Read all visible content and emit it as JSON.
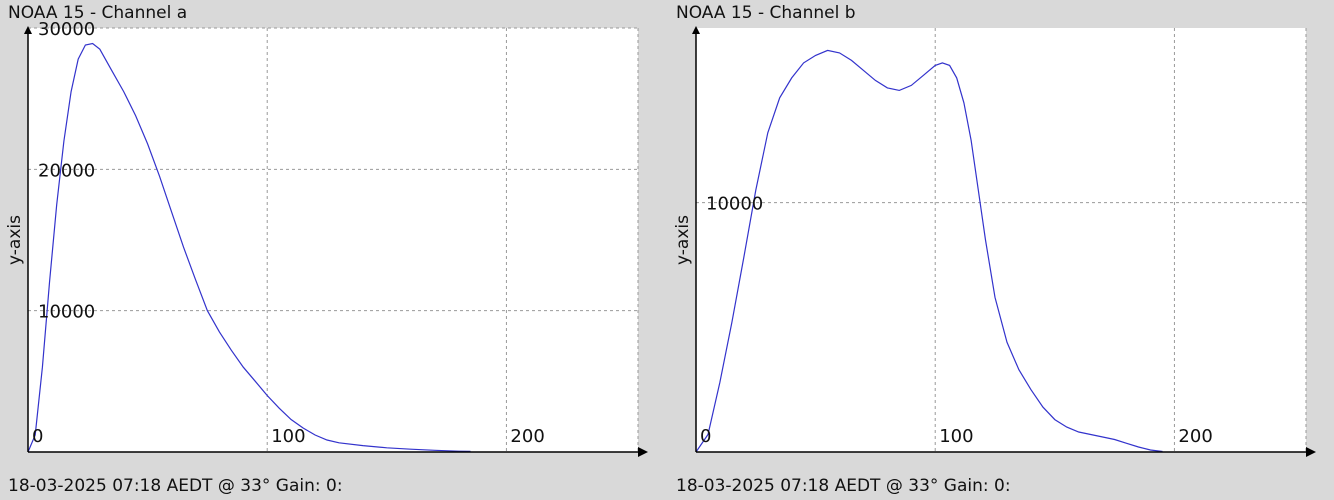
{
  "charts": [
    {
      "title": "NOAA 15 - Channel a",
      "footer": "18-03-2025 07:18 AEDT @ 33° Gain: 0:"
    },
    {
      "title": "NOAA 15 - Channel b",
      "footer": "18-03-2025 07:18 AEDT @ 33° Gain: 0:"
    }
  ],
  "chart_data": [
    {
      "type": "line",
      "title": "NOAA 15 - Channel a",
      "xlabel": "",
      "ylabel": "y-axis",
      "xlim": [
        0,
        255
      ],
      "ylim": [
        0,
        30000
      ],
      "xticks": [
        0,
        100,
        200
      ],
      "yticks": [
        10000,
        20000,
        30000
      ],
      "grid": true,
      "color": "#3333cc",
      "series": [
        {
          "x": [
            0,
            3,
            6,
            9,
            12,
            15,
            18,
            21,
            24,
            27,
            30,
            35,
            40,
            45,
            50,
            55,
            60,
            65,
            70,
            75,
            80,
            85,
            90,
            95,
            100,
            105,
            110,
            115,
            120,
            125,
            130,
            140,
            150,
            160,
            170,
            180,
            185
          ],
          "values": [
            0,
            1200,
            6000,
            12000,
            17500,
            22000,
            25500,
            27800,
            28800,
            28900,
            28500,
            27000,
            25500,
            23800,
            21800,
            19500,
            17000,
            14500,
            12200,
            10000,
            8500,
            7200,
            6000,
            5000,
            4000,
            3100,
            2300,
            1700,
            1200,
            850,
            650,
            450,
            300,
            200,
            120,
            60,
            40
          ]
        }
      ]
    },
    {
      "type": "line",
      "title": "NOAA 15 - Channel b",
      "xlabel": "",
      "ylabel": "y-axis",
      "xlim": [
        0,
        255
      ],
      "ylim": [
        0,
        17000
      ],
      "xticks": [
        0,
        100,
        200
      ],
      "yticks": [
        10000
      ],
      "grid": true,
      "color": "#3333cc",
      "series": [
        {
          "x": [
            0,
            5,
            10,
            15,
            20,
            25,
            30,
            35,
            40,
            45,
            50,
            55,
            60,
            65,
            70,
            75,
            80,
            85,
            90,
            95,
            100,
            103,
            106,
            109,
            112,
            115,
            118,
            121,
            125,
            130,
            135,
            140,
            145,
            150,
            155,
            160,
            165,
            170,
            175,
            180,
            185,
            190,
            195
          ],
          "values": [
            0,
            700,
            2800,
            5200,
            7800,
            10500,
            12800,
            14200,
            15000,
            15600,
            15900,
            16100,
            16000,
            15700,
            15300,
            14900,
            14600,
            14500,
            14700,
            15100,
            15500,
            15600,
            15500,
            15000,
            14000,
            12500,
            10500,
            8500,
            6200,
            4400,
            3300,
            2500,
            1800,
            1300,
            1000,
            800,
            700,
            600,
            500,
            350,
            200,
            80,
            20
          ]
        }
      ]
    }
  ]
}
